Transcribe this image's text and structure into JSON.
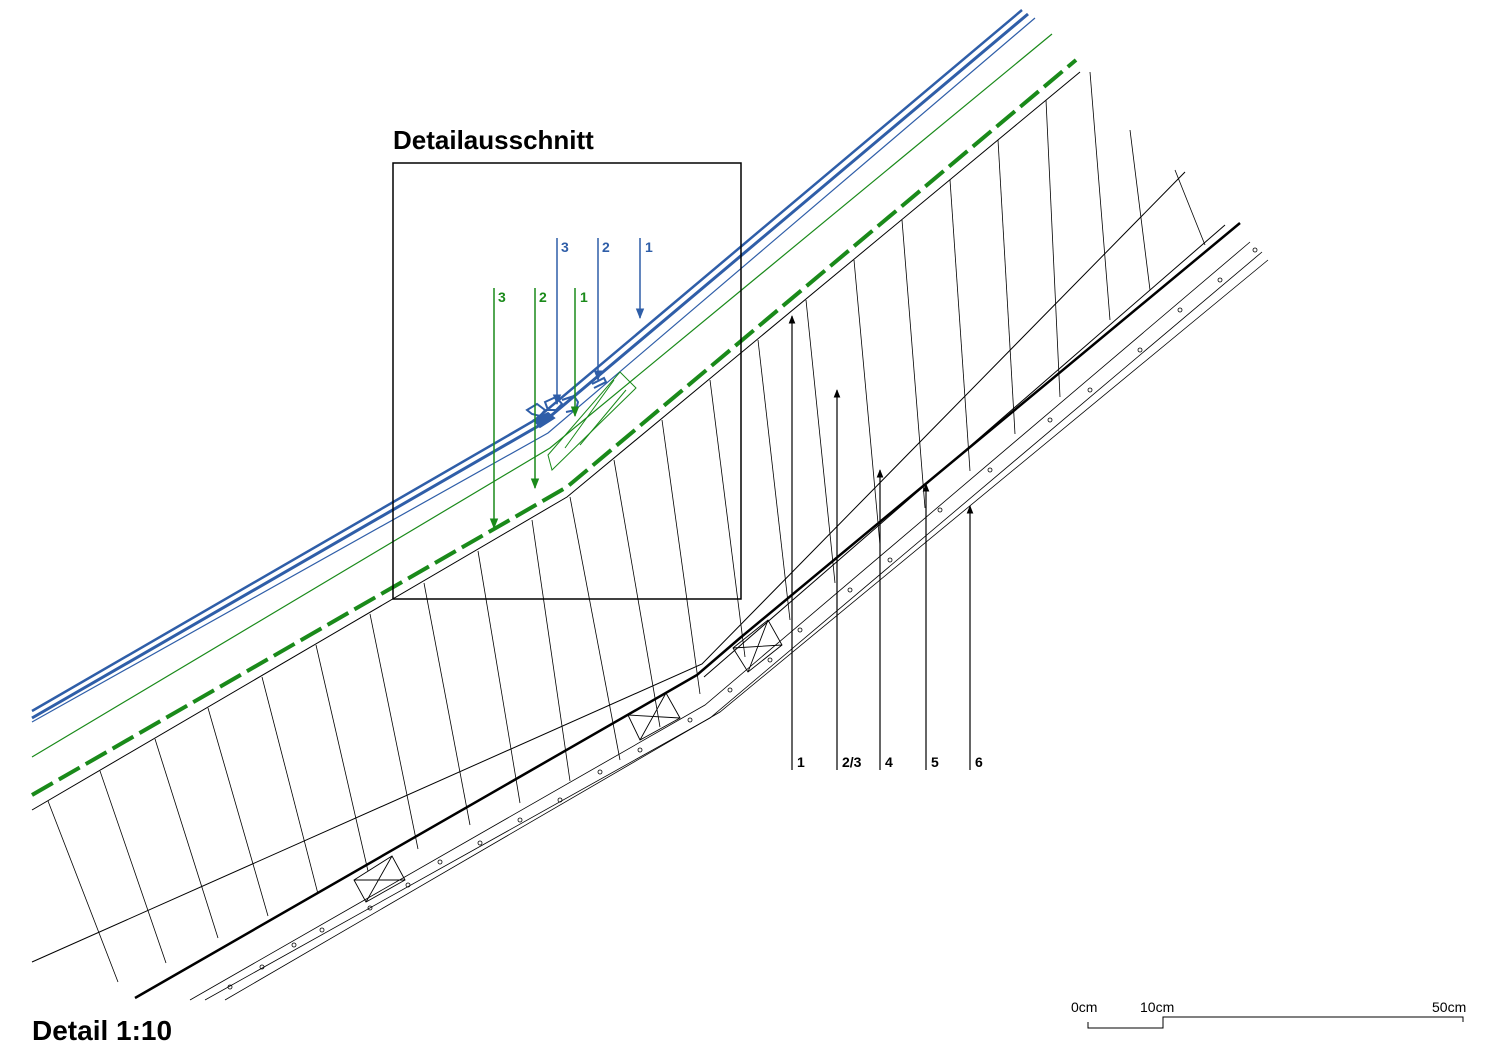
{
  "title": "Detail 1:10",
  "detail_box_title": "Detailausschnitt",
  "colors": {
    "blue": "#2f5ea8",
    "green": "#1a8a1a",
    "black": "#000000"
  },
  "blue_callouts": [
    "3",
    "2",
    "1"
  ],
  "green_callouts": [
    "3",
    "2",
    "1"
  ],
  "layer_callouts": [
    "1",
    "2/3",
    "4",
    "5",
    "6"
  ],
  "scale_bar": {
    "labels": [
      "0cm",
      "10cm",
      "50cm"
    ]
  }
}
